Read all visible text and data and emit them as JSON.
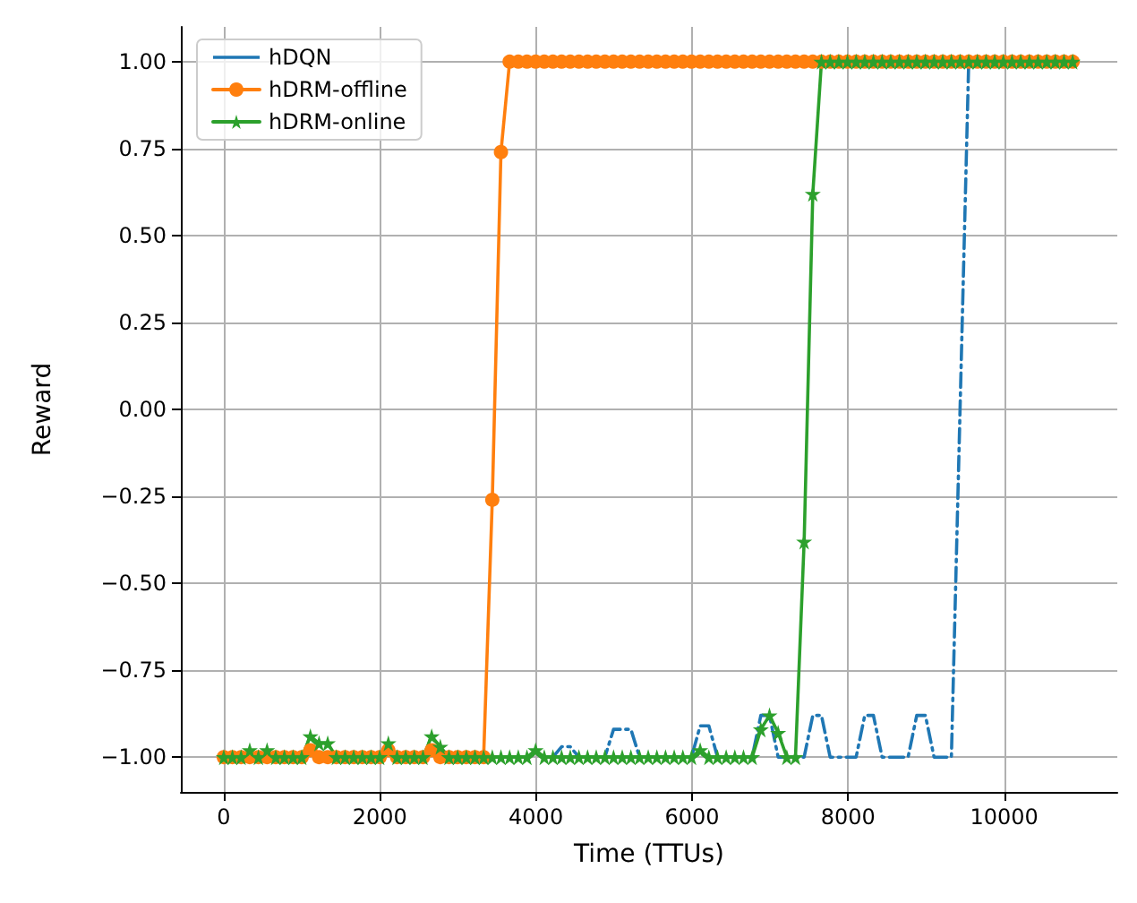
{
  "chart_data": {
    "type": "line",
    "xlabel": "Time (TTUs)",
    "ylabel": "Reward",
    "x": [
      0,
      111,
      222,
      333,
      444,
      555,
      666,
      777,
      888,
      999,
      1110,
      1221,
      1332,
      1443,
      1554,
      1665,
      1776,
      1887,
      1998,
      2109,
      2220,
      2331,
      2442,
      2553,
      2664,
      2775,
      2886,
      2997,
      3108,
      3219,
      3330,
      3441,
      3552,
      3663,
      3774,
      3885,
      3996,
      4107,
      4218,
      4329,
      4440,
      4551,
      4662,
      4773,
      4884,
      4995,
      5106,
      5217,
      5328,
      5439,
      5550,
      5661,
      5772,
      5883,
      5994,
      6105,
      6216,
      6327,
      6438,
      6549,
      6660,
      6771,
      6882,
      6993,
      7104,
      7215,
      7326,
      7437,
      7548,
      7659,
      7770,
      7881,
      7992,
      8103,
      8214,
      8325,
      8436,
      8547,
      8658,
      8769,
      8880,
      8991,
      9102,
      9213,
      9324,
      9435,
      9546,
      9657,
      9768,
      9879,
      9990,
      10101,
      10212,
      10323,
      10434,
      10545,
      10656,
      10767,
      10878
    ],
    "series": [
      {
        "name": "hDQN",
        "color": "#1f77b4",
        "marker": "none",
        "line_style": "dashdot",
        "values": [
          null,
          null,
          null,
          null,
          null,
          null,
          null,
          null,
          null,
          null,
          null,
          null,
          null,
          null,
          null,
          null,
          null,
          null,
          null,
          null,
          null,
          null,
          null,
          null,
          null,
          null,
          null,
          null,
          null,
          null,
          null,
          null,
          null,
          null,
          null,
          null,
          null,
          null,
          -1,
          -0.97,
          -0.97,
          -1,
          -1,
          -1,
          -1,
          -0.92,
          -0.92,
          -0.92,
          -1,
          -1,
          -1,
          -1,
          -1,
          -1,
          -1,
          -0.91,
          -0.91,
          -1,
          -1,
          -1,
          -1,
          -1,
          -0.88,
          -0.88,
          -1,
          -1,
          -1,
          -1,
          -0.88,
          -0.88,
          -1,
          -1,
          -1,
          -1,
          -0.88,
          -0.88,
          -1,
          -1,
          -1,
          -1,
          -0.88,
          -0.88,
          -1,
          -1,
          -1,
          0,
          1,
          1,
          1,
          null,
          null,
          null,
          null,
          null,
          null,
          null,
          null,
          null,
          null
        ]
      },
      {
        "name": "hDRM-offline",
        "color": "#ff7f0e",
        "marker": "circle",
        "line_style": "solid",
        "values": [
          -1,
          -1,
          -1,
          -1,
          -1,
          -1,
          -1,
          -1,
          -1,
          -1,
          -0.98,
          -1,
          -1,
          -1,
          -1,
          -1,
          -1,
          -1,
          -1,
          -0.98,
          -1,
          -1,
          -1,
          -1,
          -0.98,
          -1,
          -1,
          -1,
          -1,
          -1,
          -1,
          -0.26,
          0.74,
          1,
          1,
          1,
          1,
          1,
          1,
          1,
          1,
          1,
          1,
          1,
          1,
          1,
          1,
          1,
          1,
          1,
          1,
          1,
          1,
          1,
          1,
          1,
          1,
          1,
          1,
          1,
          1,
          1,
          1,
          1,
          1,
          1,
          1,
          1,
          1,
          1,
          1,
          1,
          1,
          1,
          1,
          1,
          1,
          1,
          1,
          1,
          1,
          1,
          1,
          1,
          1,
          1,
          1,
          1,
          1,
          1,
          1,
          1,
          1,
          1,
          1,
          1,
          1,
          1,
          1
        ]
      },
      {
        "name": "hDRM-online",
        "color": "#2ca02c",
        "marker": "star",
        "line_style": "solid",
        "values": [
          -1,
          -1,
          -1,
          -0.98,
          -1,
          -0.98,
          -1,
          -1,
          -1,
          -1,
          -0.94,
          -0.96,
          -0.96,
          -1,
          -1,
          -1,
          -1,
          -1,
          -1,
          -0.96,
          -1,
          -1,
          -1,
          -1,
          -0.94,
          -0.97,
          -1,
          -1,
          -1,
          -1,
          -1,
          -1,
          -1,
          -1,
          -1,
          -1,
          -0.98,
          -1,
          -1,
          -1,
          -1,
          -1,
          -1,
          -1,
          -1,
          -1,
          -1,
          -1,
          -1,
          -1,
          -1,
          -1,
          -1,
          -1,
          -1,
          -0.98,
          -1,
          -1,
          -1,
          -1,
          -1,
          -1,
          -0.92,
          -0.88,
          -0.93,
          -1,
          -1,
          -0.38,
          0.62,
          1,
          1,
          1,
          1,
          1,
          1,
          1,
          1,
          1,
          1,
          1,
          1,
          1,
          1,
          1,
          1,
          1,
          1,
          1,
          1,
          1,
          1,
          1,
          1,
          1,
          1,
          1,
          1,
          1,
          1
        ]
      }
    ],
    "xlim": [
      -550,
      11450
    ],
    "xticks": [
      0,
      2000,
      4000,
      6000,
      8000,
      10000
    ],
    "ylim": [
      -1.1,
      1.1
    ],
    "yticks": [
      {
        "value": -1,
        "label": "−1.00"
      },
      {
        "value": -0.75,
        "label": "−0.75"
      },
      {
        "value": -0.5,
        "label": "−0.50"
      },
      {
        "value": -0.25,
        "label": "−0.25"
      },
      {
        "value": 0,
        "label": "0.00"
      },
      {
        "value": 0.25,
        "label": "0.25"
      },
      {
        "value": 0.5,
        "label": "0.50"
      },
      {
        "value": 0.75,
        "label": "0.75"
      },
      {
        "value": 1,
        "label": "1.00"
      }
    ],
    "grid": true,
    "legend": "top left"
  }
}
